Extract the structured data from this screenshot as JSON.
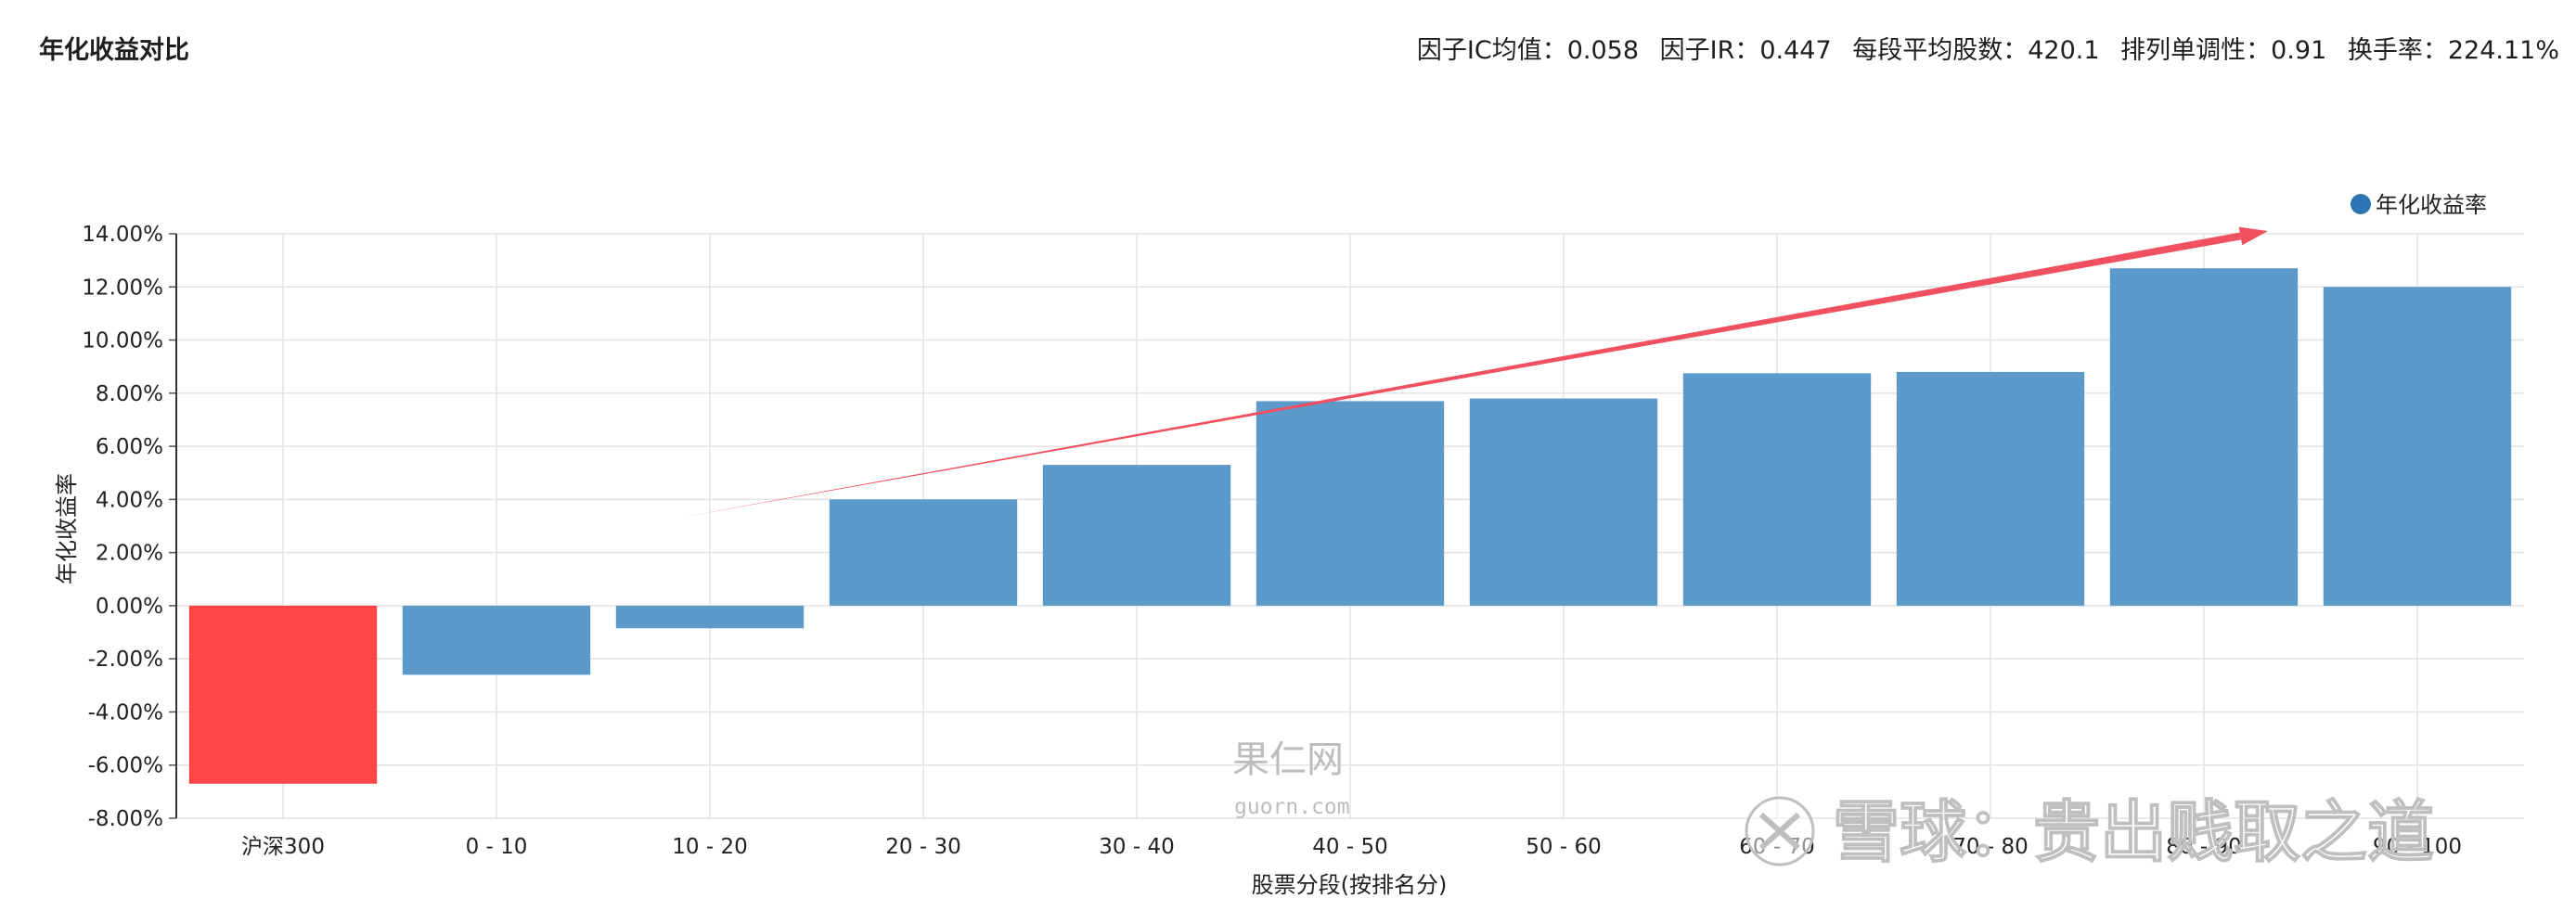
{
  "header": {
    "title": "年化收益对比",
    "stats": [
      "因子IC均值：0.058",
      "因子IR：0.447",
      "每段平均股数：420.1",
      "排列单调性：0.91",
      "换手率：224.11%"
    ]
  },
  "chart_data": {
    "type": "bar",
    "title": "年化收益对比",
    "xlabel": "股票分段(按排名分)",
    "ylabel": "年化收益率",
    "categories": [
      "沪深300",
      "0 - 10",
      "10 - 20",
      "20 - 30",
      "30 - 40",
      "40 - 50",
      "50 - 60",
      "60 - 70",
      "70 - 80",
      "80 - 90",
      "90 - 100"
    ],
    "series": [
      {
        "name": "年化收益率",
        "values": [
          -6.7,
          -2.6,
          -0.85,
          4.0,
          5.3,
          7.7,
          7.8,
          8.75,
          8.8,
          12.7,
          12.0
        ]
      }
    ],
    "bar_colors": [
      "#ff3b3b",
      "#5b9ac9",
      "#5b9ac9",
      "#5b9ac9",
      "#5b9ac9",
      "#5b9ac9",
      "#5b9ac9",
      "#5b9ac9",
      "#5b9ac9",
      "#5b9ac9",
      "#5b9ac9"
    ],
    "ylim": [
      -8,
      14
    ],
    "yticks": [
      "-8.00%",
      "-6.00%",
      "-4.00%",
      "-2.00%",
      "0.00%",
      "2.00%",
      "4.00%",
      "6.00%",
      "8.00%",
      "10.00%",
      "12.00%",
      "14.00%"
    ],
    "grid": true,
    "legend_position": "top-right",
    "legend_color": "#2e75b6",
    "trend_arrow": {
      "from_category": "10 - 20",
      "from_value": 3.3,
      "to_category": "80 - 90",
      "to_value": 14.1,
      "color": "#f0505f"
    }
  },
  "watermarks": {
    "site_cn": "果仁网",
    "site_en": "guorn.com",
    "xueqiu": "雪球：贵出贱取之道"
  }
}
